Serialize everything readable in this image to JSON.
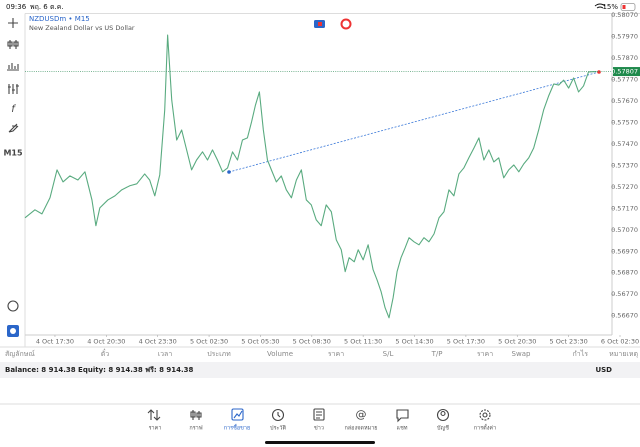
{
  "status_bar": {
    "time": "09:36",
    "date": "พฤ. 6 ต.ค.",
    "battery": "15%"
  },
  "chart_header": {
    "symbol": "NZDUSDm • M15",
    "description": "New Zealand Dollar vs US Dollar"
  },
  "timeframe": "M15",
  "chart_data": {
    "type": "line",
    "color": "#5aab80",
    "grid": false,
    "x": [
      -1.75,
      -1.17,
      -0.76,
      -0.29,
      0.12,
      0.47,
      0.87,
      1.34,
      1.75,
      2.16,
      2.39,
      2.62,
      3.09,
      3.5,
      3.9,
      4.37,
      4.78,
      5.24,
      5.53,
      5.83,
      6.12,
      6.41,
      6.58,
      6.82,
      7.11,
      7.4,
      7.69,
      7.98,
      8.27,
      8.62,
      8.91,
      9.2,
      9.49,
      9.79,
      10.08,
      10.37,
      10.66,
      10.95,
      11.24,
      11.48,
      11.71,
      11.94,
      12.17,
      12.41,
      12.64,
      12.93,
      13.22,
      13.51,
      13.81,
      14.1,
      14.39,
      14.68,
      14.97,
      15.26,
      15.55,
      15.84,
      16.14,
      16.43,
      16.72,
      16.95,
      17.18,
      17.48,
      17.71,
      18.0,
      18.29,
      18.58,
      18.81,
      19.05,
      19.28,
      19.51,
      19.75,
      19.98,
      20.21,
      20.45,
      20.68,
      20.97,
      21.26,
      21.55,
      21.84,
      22.14,
      22.43,
      22.72,
      23.01,
      23.3,
      23.59,
      23.88,
      24.17,
      24.47,
      24.76,
      25.05,
      25.34,
      25.63,
      25.92,
      26.21,
      26.5,
      26.8,
      27.09,
      27.38,
      27.67,
      27.96,
      28.25,
      28.54,
      28.83,
      29.13,
      29.42,
      29.71,
      30.0,
      30.29,
      30.58,
      30.87,
      31.16,
      31.63
    ],
    "values": [
      0.57126,
      0.57163,
      0.57144,
      0.57219,
      0.57349,
      0.57293,
      0.57321,
      0.57302,
      0.5734,
      0.57209,
      0.57089,
      0.57172,
      0.57209,
      0.57228,
      0.57256,
      0.57275,
      0.57284,
      0.5733,
      0.57302,
      0.57228,
      0.57326,
      0.57628,
      0.57977,
      0.57674,
      0.57488,
      0.57535,
      0.57442,
      0.57349,
      0.57395,
      0.57433,
      0.57395,
      0.57442,
      0.57395,
      0.5734,
      0.57358,
      0.57433,
      0.57395,
      0.57488,
      0.57498,
      0.57572,
      0.57651,
      0.57712,
      0.57535,
      0.57395,
      0.57349,
      0.57293,
      0.57321,
      0.57256,
      0.57219,
      0.57302,
      0.57349,
      0.57209,
      0.57186,
      0.57116,
      0.57089,
      0.57186,
      0.57154,
      0.57023,
      0.56977,
      0.56875,
      0.5694,
      0.56921,
      0.56977,
      0.5693,
      0.57,
      0.56884,
      0.56837,
      0.56781,
      0.56707,
      0.5666,
      0.56754,
      0.56875,
      0.5694,
      0.56986,
      0.57033,
      0.57014,
      0.57,
      0.57033,
      0.57014,
      0.57051,
      0.57126,
      0.57154,
      0.57256,
      0.57228,
      0.5733,
      0.57358,
      0.57405,
      0.57451,
      0.57498,
      0.57395,
      0.57442,
      0.57386,
      0.57405,
      0.57312,
      0.57349,
      0.57372,
      0.5734,
      0.57377,
      0.57405,
      0.57451,
      0.57535,
      0.57628,
      0.57693,
      0.57749,
      0.57744,
      0.57767,
      0.5773,
      0.57777,
      0.57712,
      0.5774,
      0.57805,
      0.57807
    ],
    "xlim": [
      -1.75,
      33
    ],
    "ylim": [
      0.5658,
      0.58075
    ],
    "xticks": [
      {
        "value": 0,
        "label": "4 Oct 17:30"
      },
      {
        "value": 3,
        "label": "4 Oct 20:30"
      },
      {
        "value": 6,
        "label": "4 Oct 23:30"
      },
      {
        "value": 9,
        "label": "5 Oct 02:30"
      },
      {
        "value": 12,
        "label": "5 Oct 05:30"
      },
      {
        "value": 15,
        "label": "5 Oct 08:30"
      },
      {
        "value": 18,
        "label": "5 Oct 11:30"
      },
      {
        "value": 21,
        "label": "5 Oct 14:30"
      },
      {
        "value": 24,
        "label": "5 Oct 17:30"
      },
      {
        "value": 27,
        "label": "5 Oct 20:30"
      },
      {
        "value": 30,
        "label": "5 Oct 23:30"
      },
      {
        "value": 33,
        "label": "6 Oct 02:30"
      }
    ],
    "yticks": [
      {
        "value": 0.5807,
        "label": "0.58070"
      },
      {
        "value": 0.5797,
        "label": "0.57970"
      },
      {
        "value": 0.5787,
        "label": "0.57870"
      },
      {
        "value": 0.5777,
        "label": "0.57770"
      },
      {
        "value": 0.5767,
        "label": "0.57670"
      },
      {
        "value": 0.5757,
        "label": "0.57570"
      },
      {
        "value": 0.5747,
        "label": "0.57470"
      },
      {
        "value": 0.5737,
        "label": "0.57370"
      },
      {
        "value": 0.5727,
        "label": "0.57270"
      },
      {
        "value": 0.5717,
        "label": "0.57170"
      },
      {
        "value": 0.5707,
        "label": "0.57070"
      },
      {
        "value": 0.5697,
        "label": "0.56970"
      },
      {
        "value": 0.5687,
        "label": "0.56870"
      },
      {
        "value": 0.5677,
        "label": "0.56770"
      },
      {
        "value": 0.5667,
        "label": "0.56670"
      }
    ],
    "last_value": {
      "value": 0.57807,
      "label": "0.57807"
    }
  },
  "table": {
    "columns": [
      "สัญลักษณ์",
      "ตั๋ว",
      "เวลา",
      "ประเภท",
      "Volume",
      "ราคา",
      "S/L",
      "T/P",
      "ราคา",
      "Swap",
      "กำไร",
      "หมายเหตุ"
    ]
  },
  "balance": {
    "text": "Balance: 8 914.38 Equity: 8 914.38 ฟรี: 8 914.38",
    "currency": "USD"
  },
  "tabs": [
    "ราคา",
    "กราฟ",
    "การซื้อขาย",
    "ประวัติ",
    "ข่าว",
    "กล่องจดหมาย",
    "แชท",
    "บัญชี",
    "การตั้งค่า"
  ]
}
